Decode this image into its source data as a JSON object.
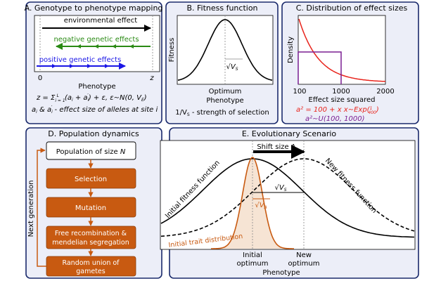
{
  "colors": {
    "panel_border": "#1a2a6c",
    "panel_bg": "#eceef8",
    "orange": "#c85a11",
    "green": "#2a8a14",
    "blue": "#1a16e6",
    "red": "#e8241c",
    "purple": "#7a1e92",
    "trait_fill": "#f6e4d4"
  },
  "panel_a": {
    "title": "A. Genotype to phenotype mapping",
    "environmental": "environmental effect",
    "negative": "negative genetic effects",
    "positive": "positive genetic effects",
    "tick_zero": "0",
    "tick_z": "z",
    "xlabel": "Phenotype",
    "eq1": "z = Σ",
    "eq1_sub": "i = 1",
    "eq1_sup": "L",
    "eq1_rest": "(a",
    "eq1_i": "i",
    "eq1_plus": " + a",
    "eq1_ip": "i",
    "eq1_prime": "′",
    "eq1_tail": ") + ε,  ε∼N(0, V",
    "eq1_E": "E",
    "eq1_close": ")",
    "eq2_a": "a",
    "eq2_i": "i",
    "eq2_amp": " & a",
    "eq2_ip": "i",
    "eq2_prime": "′",
    "eq2_text": " - effect size of alleles at site i"
  },
  "panel_b": {
    "title": "B. Fitness function",
    "ylabel": "Fitness",
    "sqrt_label": "√V",
    "sqrt_sub": "S",
    "xlabel1": "Optimum",
    "xlabel2": "Phenotype",
    "caption_pre": "1/V",
    "caption_sub": "S",
    "caption_post": " - strength of selection"
  },
  "panel_c": {
    "title": "C. Distribution of effect sizes",
    "ylabel": "Density",
    "ticks": [
      "100",
      "1000",
      "2000"
    ],
    "xlabel": "Effect size squared",
    "red_eq": "a² = 100 + x  x∼Exp(",
    "red_frac_num": "1",
    "red_frac_den": "400",
    "red_eq_close": ")",
    "purple_eq": "a²∼U(100, 1000)"
  },
  "panel_d": {
    "title": "D. Population dynamics",
    "pop_pre": "Population of size ",
    "pop_n": "N",
    "selection": "Selection",
    "mutation": "Mutation",
    "recomb1": "Free recombination &",
    "recomb2": "mendelian segregation",
    "union1": "Random union of",
    "union2": "gametes",
    "side": "Next generation"
  },
  "panel_e": {
    "title": "E. Evolutionary Scenario",
    "shift": "Shift size Λ",
    "initial_ff": "Initial fitness function",
    "new_ff": "New fitness function",
    "sqrt_vs": "√V",
    "sqrt_vs_sub": "S",
    "sqrt_va": "√V",
    "sqrt_va_sub": "A",
    "initial_trait": "Initial trait distribution",
    "initial_opt1": "Initial",
    "initial_opt2": "optimum",
    "new_opt1": "New",
    "new_opt2": "optimum",
    "xlabel": "Phenotype"
  }
}
